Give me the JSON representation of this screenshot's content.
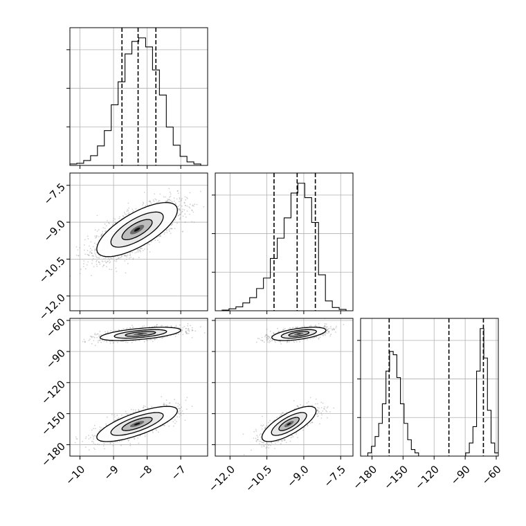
{
  "chart_data": {
    "type": "corner",
    "params": [
      {
        "ticks": [
          -10,
          -9,
          -8,
          -7
        ],
        "tick_labels": [
          "−10",
          "−9",
          "−8",
          "−7"
        ],
        "range": [
          -10.3,
          -6.2
        ]
      },
      {
        "ticks": [
          -12.0,
          -10.5,
          -9.0,
          -7.5
        ],
        "tick_labels": [
          "−12.0",
          "−10.5",
          "−9.0",
          "−7.5"
        ],
        "range": [
          -12.6,
          -7.0
        ]
      },
      {
        "ticks": [
          -180,
          -150,
          -120,
          -90,
          -60
        ],
        "tick_labels": [
          "−180",
          "−150",
          "−120",
          "−90",
          "−60"
        ],
        "range": [
          -191,
          -58
        ]
      }
    ],
    "histograms": [
      {
        "param": 0,
        "bin_edges": [
          -10.3,
          -10.095,
          -9.89,
          -9.685,
          -9.48,
          -9.275,
          -9.07,
          -8.865,
          -8.66,
          -8.455,
          -8.25,
          -8.045,
          -7.84,
          -7.635,
          -7.43,
          -7.225,
          -7.02,
          -6.815,
          -6.61,
          -6.405,
          -6.2
        ],
        "counts": [
          2,
          3,
          7,
          14,
          28,
          50,
          87,
          120,
          160,
          178,
          183,
          170,
          137,
          101,
          55,
          29,
          13,
          5,
          2,
          0
        ],
        "quantiles": [
          -8.75,
          -8.27,
          -7.74
        ]
      },
      {
        "param": 1,
        "bin_edges": [
          -12.6,
          -12.32,
          -12.04,
          -11.76,
          -11.48,
          -11.2,
          -10.92,
          -10.64,
          -10.36,
          -10.08,
          -9.8,
          -9.52,
          -9.24,
          -8.96,
          -8.68,
          -8.4,
          -8.12,
          -7.84,
          -7.56,
          -7.28,
          -7.0
        ],
        "counts": [
          0,
          1,
          3,
          6,
          12,
          20,
          34,
          50,
          80,
          111,
          142,
          180,
          195,
          173,
          135,
          55,
          15,
          5,
          2,
          0
        ],
        "quantiles": [
          -10.21,
          -9.27,
          -8.53
        ]
      },
      {
        "param": 2,
        "bin_edges": [
          -191,
          -187.5,
          -184,
          -180.5,
          -177,
          -173.5,
          -170,
          -166.5,
          -163,
          -159.5,
          -156,
          -152.5,
          -149,
          -145.5,
          -142,
          -138.5,
          -135,
          -131.5,
          -128,
          -124.5,
          -121,
          -117.5,
          -114,
          -110.5,
          -107,
          -103.5,
          -100,
          -96.5,
          -93,
          -89.5,
          -86,
          -82.5,
          -79,
          -75.5,
          -72,
          -68.5,
          -65,
          -61.5,
          -58
        ],
        "counts": [
          0,
          0,
          1,
          3,
          6,
          10,
          16,
          26,
          32,
          31,
          24,
          16,
          10,
          5,
          2,
          1,
          0,
          0,
          0,
          0,
          0,
          0,
          0,
          0,
          0,
          0,
          0,
          0,
          0,
          1,
          4,
          9,
          26,
          39,
          30,
          14,
          4,
          1
        ],
        "quantiles": [
          -163.4,
          -105.7,
          -72.4
        ]
      }
    ],
    "scatter_panels": [
      {
        "x_param": 0,
        "y_param": 1,
        "components": [
          {
            "center": [
              -8.3,
              -9.3
            ],
            "sd": [
              0.6,
              0.55
            ],
            "rho": 0.72,
            "weight": 1.0
          }
        ]
      },
      {
        "x_param": 0,
        "y_param": 2,
        "components": [
          {
            "center": [
              -8.2,
              -73
            ],
            "sd": [
              0.6,
              3.2
            ],
            "rho": 0.55,
            "weight": 0.52
          },
          {
            "center": [
              -8.3,
              -160
            ],
            "sd": [
              0.6,
              8.5
            ],
            "rho": 0.75,
            "weight": 0.48
          }
        ]
      },
      {
        "x_param": 1,
        "y_param": 2,
        "components": [
          {
            "center": [
              -9.2,
              -73
            ],
            "sd": [
              0.55,
              3.2
            ],
            "rho": 0.55,
            "weight": 0.52
          },
          {
            "center": [
              -9.6,
              -160
            ],
            "sd": [
              0.55,
              8.5
            ],
            "rho": 0.75,
            "weight": 0.48
          }
        ]
      }
    ],
    "grid": true,
    "colors": {
      "hist": "#000000",
      "points": "#9a9a9a",
      "grid": "#b0b0b0"
    }
  }
}
